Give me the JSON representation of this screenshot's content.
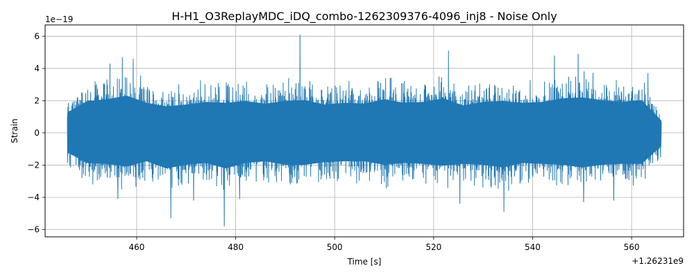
{
  "chart_data": {
    "type": "line",
    "title": "H-H1_O3ReplayMDC_iDQ_combo-1262309376-4096_inj8 - Noise Only",
    "xlabel": "Time [s]",
    "ylabel": "Strain",
    "x_offset_label": "+1.26231e9",
    "y_scale_label": "1e−19",
    "xlim": [
      441.5,
      570.5
    ],
    "ylim": [
      -6.45,
      6.7
    ],
    "x_ticks": [
      460,
      480,
      500,
      520,
      540,
      560
    ],
    "x_tick_labels": [
      "460",
      "480",
      "500",
      "520",
      "540",
      "560"
    ],
    "y_ticks": [
      -6,
      -4,
      -2,
      0,
      2,
      4,
      6
    ],
    "y_tick_labels": [
      "−6",
      "−4",
      "−2",
      "0",
      "2",
      "4",
      "6"
    ],
    "grid": true,
    "series": [
      {
        "color": "#1f77b4",
        "x_range": [
          446.0,
          566.0
        ],
        "envelope_x": [
          446,
          450,
          454,
          458,
          462,
          466,
          470,
          474,
          478,
          482,
          486,
          490,
          494,
          498,
          502,
          506,
          510,
          514,
          518,
          522,
          526,
          530,
          534,
          538,
          542,
          546,
          550,
          554,
          558,
          562,
          566
        ],
        "envelope_upper": [
          2.3,
          3.6,
          3.8,
          4.2,
          3.4,
          3.0,
          3.2,
          3.5,
          3.4,
          3.6,
          3.3,
          3.6,
          3.7,
          3.2,
          3.4,
          3.3,
          3.8,
          3.4,
          3.5,
          3.9,
          3.1,
          3.5,
          3.6,
          3.4,
          3.5,
          3.9,
          4.0,
          3.7,
          3.5,
          3.7,
          1.4
        ],
        "envelope_lower": [
          -2.2,
          -3.4,
          -3.5,
          -3.8,
          -3.2,
          -4.0,
          -3.6,
          -3.4,
          -4.0,
          -3.4,
          -3.2,
          -3.6,
          -3.6,
          -3.3,
          -3.2,
          -3.2,
          -3.6,
          -3.4,
          -3.5,
          -3.7,
          -3.5,
          -3.6,
          -3.9,
          -3.4,
          -3.5,
          -3.6,
          -3.9,
          -3.6,
          -3.5,
          -3.5,
          -1.5
        ],
        "peaks": [
          {
            "x": 454.6,
            "y": 4.3
          },
          {
            "x": 457.1,
            "y": 4.7
          },
          {
            "x": 459.3,
            "y": 4.6
          },
          {
            "x": 493.0,
            "y": 6.1
          },
          {
            "x": 523.0,
            "y": 5.1
          },
          {
            "x": 544.4,
            "y": 4.8
          },
          {
            "x": 549.2,
            "y": 4.9
          },
          {
            "x": 563.3,
            "y": 3.7
          }
        ],
        "troughs": [
          {
            "x": 456.2,
            "y": -4.1
          },
          {
            "x": 466.9,
            "y": -5.3
          },
          {
            "x": 471.5,
            "y": -4.2
          },
          {
            "x": 477.7,
            "y": -5.8
          },
          {
            "x": 480.8,
            "y": -4.1
          },
          {
            "x": 525.3,
            "y": -4.4
          },
          {
            "x": 534.2,
            "y": -4.9
          },
          {
            "x": 550.3,
            "y": -4.3
          },
          {
            "x": 556.4,
            "y": -4.2
          }
        ]
      }
    ]
  }
}
